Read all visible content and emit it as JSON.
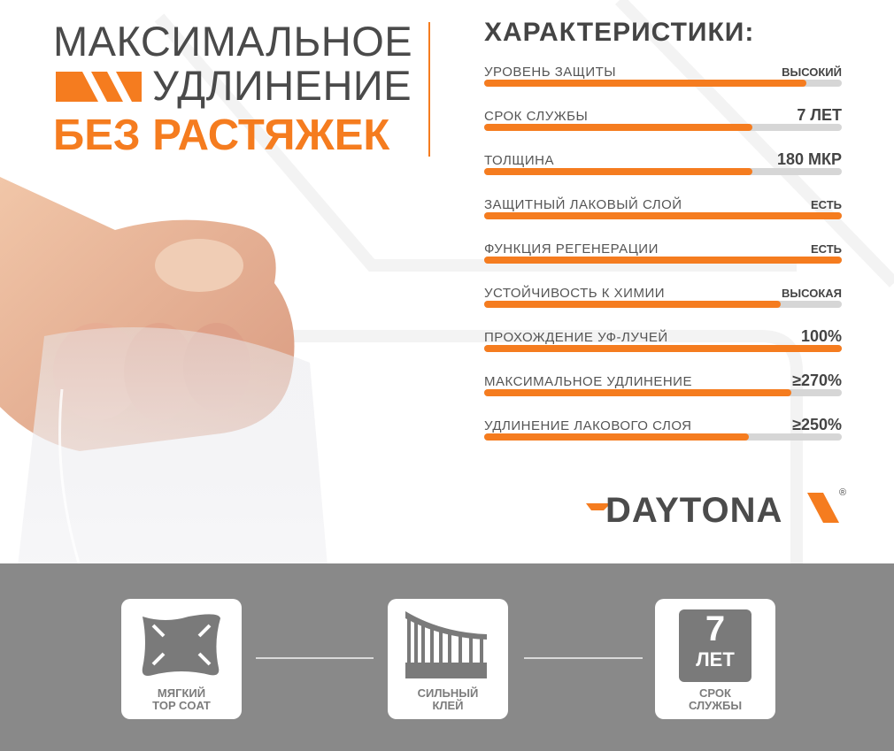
{
  "headline": {
    "line1": "МАКСИМАЛЬНОЕ",
    "line2": "УДЛИНЕНИЕ",
    "line3": "БЕЗ РАСТЯЖЕК"
  },
  "specs": {
    "title": "ХАРАКТЕРИСТИКИ:",
    "items": [
      {
        "label": "УРОВЕНЬ ЗАЩИТЫ",
        "value": "ВЫСОКИЙ",
        "level": 0.9
      },
      {
        "label": "СРОК СЛУЖБЫ",
        "value": "7 ЛЕТ",
        "level": 0.75
      },
      {
        "label": "ТОЛЩИНА",
        "value": "180 МКР",
        "level": 0.75
      },
      {
        "label": "ЗАЩИТНЫЙ ЛАКОВЫЙ СЛОЙ",
        "value": "ЕСТЬ",
        "level": 1.0
      },
      {
        "label": "ФУНКЦИЯ РЕГЕНЕРАЦИИ",
        "value": "ЕСТЬ",
        "level": 1.0
      },
      {
        "label": "УСТОЙЧИВОСТЬ К ХИМИИ",
        "value": "ВЫСОКАЯ",
        "level": 0.83
      },
      {
        "label": "ПРОХОЖДЕНИЕ УФ-ЛУЧЕЙ",
        "value": "100%",
        "level": 1.0
      },
      {
        "label": "МАКСИМАЛЬНОЕ УДЛИНЕНИЕ",
        "value": "≥270%",
        "level": 0.86
      },
      {
        "label": "УДЛИНЕНИЕ ЛАКОВОГО СЛОЯ",
        "value": "≥250%",
        "level": 0.74
      }
    ]
  },
  "logo": {
    "text": "DAYTONA",
    "mark": "®"
  },
  "features": [
    {
      "icon": "stretch-arrows-icon",
      "line1": "МЯГКИЙ",
      "line2": "TOP COAT"
    },
    {
      "icon": "adhesive-icon",
      "line1": "СИЛЬНЫЙ",
      "line2": "КЛЕЙ"
    },
    {
      "icon": "seven-years-icon",
      "badge_num": "7",
      "badge_unit": "ЛЕТ",
      "line1": "СРОК",
      "line2": "СЛУЖБЫ"
    }
  ],
  "colors": {
    "accent": "#f57c1f",
    "text": "#4a4a4a",
    "band": "#898989",
    "track": "#d6d6d6"
  }
}
